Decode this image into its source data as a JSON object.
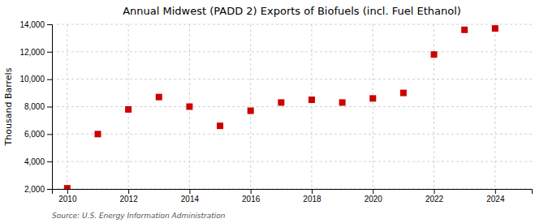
{
  "chart_data": {
    "type": "scatter",
    "title": "Annual Midwest (PADD 2) Exports of Biofuels (incl. Fuel Ethanol)",
    "ylabel": "Thousand Barrels",
    "source": "Source: U.S. Energy Information Administration",
    "x": [
      2010,
      2011,
      2012,
      2013,
      2014,
      2015,
      2016,
      2017,
      2018,
      2019,
      2020,
      2021,
      2022,
      2023,
      2024
    ],
    "values": [
      2050,
      6000,
      7800,
      8700,
      8000,
      6600,
      7700,
      8300,
      8500,
      8300,
      8600,
      9000,
      11800,
      13600,
      13700
    ],
    "color": "#cc0000",
    "marker": "square",
    "xlim": [
      2009.5,
      2025.2
    ],
    "ylim": [
      2000,
      14000
    ],
    "xticks": [
      2010,
      2012,
      2014,
      2016,
      2018,
      2020,
      2022,
      2024
    ],
    "yticks": [
      {
        "value": 2000,
        "label": "2,000"
      },
      {
        "value": 4000,
        "label": "4,000"
      },
      {
        "value": 6000,
        "label": "6,000"
      },
      {
        "value": 8000,
        "label": "8,000"
      },
      {
        "value": 10000,
        "label": "10,000"
      },
      {
        "value": 12000,
        "label": "12,000"
      },
      {
        "value": 14000,
        "label": "14,000"
      }
    ],
    "grid": true
  }
}
